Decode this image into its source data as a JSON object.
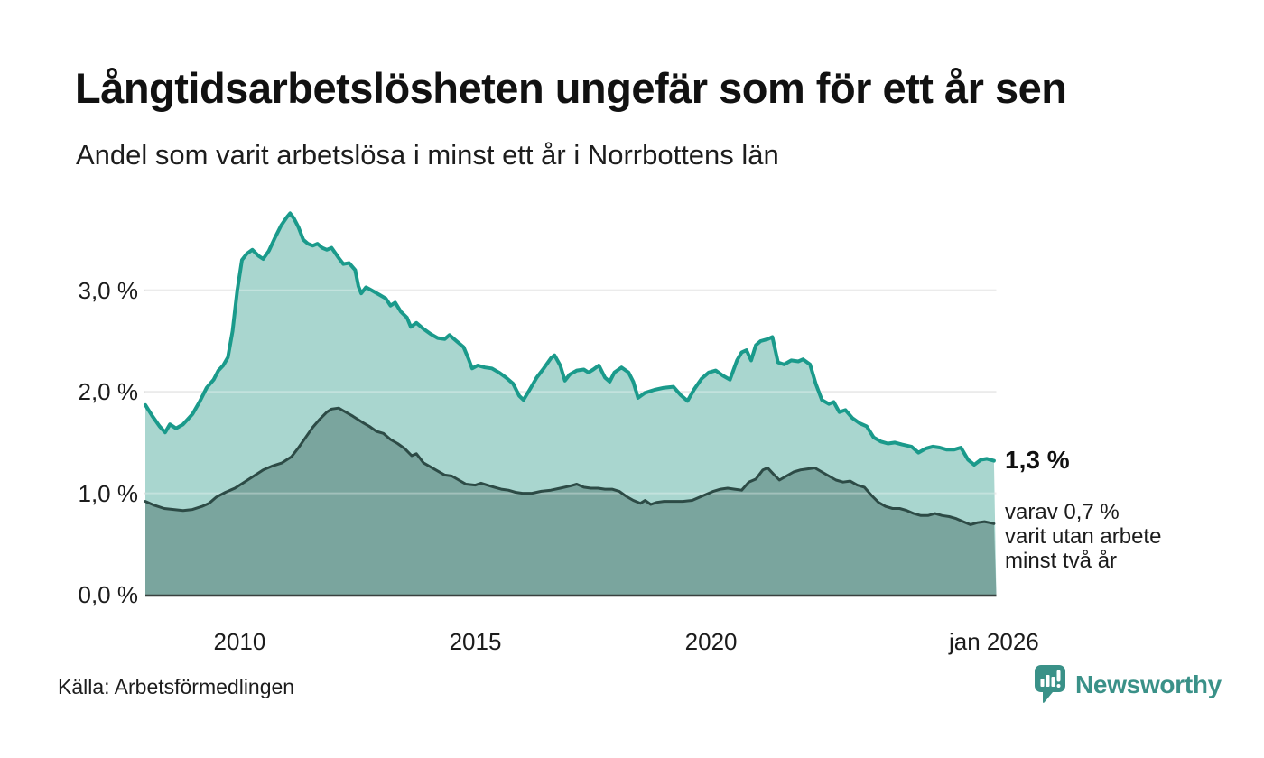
{
  "title": "Långtidsarbetslösheten ungefär som för ett år sen",
  "subtitle": "Andel som varit arbetslösa i minst ett år i Norrbottens län",
  "source": "Källa: Arbetsförmedlingen",
  "branding": {
    "name": "Newsworthy",
    "color": "#3a9188"
  },
  "annotations": {
    "latest_total": "1,3 %",
    "latest_sub": [
      "varav 0,7 %",
      "varit utan arbete",
      "minst två år"
    ]
  },
  "chart_data": {
    "type": "area",
    "title": "Långtidsarbetslösheten ungefär som för ett år sen",
    "subtitle": "Andel som varit arbetslösa i minst ett år i Norrbottens län",
    "unit": "percent",
    "grid": true,
    "colors": {
      "background": "#ffffff",
      "text": "#1c1c1c",
      "grid": "#e2e2e2",
      "baseline": "#39413f",
      "accent": "#3a9188"
    },
    "x_axis": {
      "range": [
        2008.0,
        2026.05
      ],
      "ticks": [
        {
          "label": "2010",
          "year": 2010
        },
        {
          "label": "2015",
          "year": 2015
        },
        {
          "label": "2020",
          "year": 2020
        },
        {
          "label": "jan 2026",
          "year": 2026
        }
      ]
    },
    "y_axis": {
      "range": [
        0,
        3.9
      ],
      "gridline_values": [
        1,
        2,
        3
      ],
      "ticks": [
        {
          "label": "0,0 %",
          "value": 0
        },
        {
          "label": "1,0 %",
          "value": 1
        },
        {
          "label": "2,0 %",
          "value": 2
        },
        {
          "label": "3,0 %",
          "value": 3
        }
      ]
    },
    "series": [
      {
        "name": "Arbetslösa minst ett år",
        "latest_label": "1,3 %",
        "line_color": "#1a9a8b",
        "fill_color": "#a9d6cf",
        "line_width": 4,
        "points": [
          [
            2008.0,
            1.87
          ],
          [
            2008.15,
            1.76
          ],
          [
            2008.3,
            1.66
          ],
          [
            2008.42,
            1.6
          ],
          [
            2008.52,
            1.68
          ],
          [
            2008.65,
            1.64
          ],
          [
            2008.8,
            1.68
          ],
          [
            2009.0,
            1.78
          ],
          [
            2009.15,
            1.9
          ],
          [
            2009.3,
            2.04
          ],
          [
            2009.45,
            2.12
          ],
          [
            2009.55,
            2.21
          ],
          [
            2009.65,
            2.26
          ],
          [
            2009.75,
            2.34
          ],
          [
            2009.85,
            2.6
          ],
          [
            2009.95,
            3.0
          ],
          [
            2010.05,
            3.3
          ],
          [
            2010.15,
            3.36
          ],
          [
            2010.27,
            3.4
          ],
          [
            2010.4,
            3.34
          ],
          [
            2010.5,
            3.31
          ],
          [
            2010.62,
            3.39
          ],
          [
            2010.75,
            3.52
          ],
          [
            2010.88,
            3.64
          ],
          [
            2011.0,
            3.72
          ],
          [
            2011.07,
            3.76
          ],
          [
            2011.15,
            3.71
          ],
          [
            2011.25,
            3.62
          ],
          [
            2011.35,
            3.5
          ],
          [
            2011.45,
            3.46
          ],
          [
            2011.55,
            3.44
          ],
          [
            2011.65,
            3.46
          ],
          [
            2011.75,
            3.42
          ],
          [
            2011.85,
            3.4
          ],
          [
            2011.95,
            3.42
          ],
          [
            2012.1,
            3.32
          ],
          [
            2012.2,
            3.26
          ],
          [
            2012.32,
            3.27
          ],
          [
            2012.45,
            3.2
          ],
          [
            2012.52,
            3.04
          ],
          [
            2012.58,
            2.97
          ],
          [
            2012.68,
            3.03
          ],
          [
            2012.8,
            3.0
          ],
          [
            2012.95,
            2.96
          ],
          [
            2013.1,
            2.92
          ],
          [
            2013.2,
            2.85
          ],
          [
            2013.3,
            2.88
          ],
          [
            2013.42,
            2.79
          ],
          [
            2013.55,
            2.73
          ],
          [
            2013.63,
            2.64
          ],
          [
            2013.75,
            2.68
          ],
          [
            2013.9,
            2.62
          ],
          [
            2014.05,
            2.57
          ],
          [
            2014.2,
            2.53
          ],
          [
            2014.35,
            2.52
          ],
          [
            2014.45,
            2.56
          ],
          [
            2014.6,
            2.5
          ],
          [
            2014.75,
            2.44
          ],
          [
            2014.85,
            2.33
          ],
          [
            2014.93,
            2.23
          ],
          [
            2015.05,
            2.26
          ],
          [
            2015.2,
            2.24
          ],
          [
            2015.35,
            2.23
          ],
          [
            2015.5,
            2.19
          ],
          [
            2015.65,
            2.14
          ],
          [
            2015.8,
            2.08
          ],
          [
            2015.93,
            1.96
          ],
          [
            2016.02,
            1.92
          ],
          [
            2016.15,
            2.02
          ],
          [
            2016.3,
            2.14
          ],
          [
            2016.45,
            2.23
          ],
          [
            2016.6,
            2.33
          ],
          [
            2016.68,
            2.36
          ],
          [
            2016.8,
            2.26
          ],
          [
            2016.9,
            2.11
          ],
          [
            2017.0,
            2.17
          ],
          [
            2017.15,
            2.21
          ],
          [
            2017.3,
            2.22
          ],
          [
            2017.4,
            2.19
          ],
          [
            2017.5,
            2.22
          ],
          [
            2017.62,
            2.26
          ],
          [
            2017.75,
            2.14
          ],
          [
            2017.85,
            2.1
          ],
          [
            2017.95,
            2.19
          ],
          [
            2018.1,
            2.24
          ],
          [
            2018.25,
            2.19
          ],
          [
            2018.35,
            2.1
          ],
          [
            2018.45,
            1.94
          ],
          [
            2018.6,
            1.99
          ],
          [
            2018.8,
            2.02
          ],
          [
            2019.0,
            2.04
          ],
          [
            2019.2,
            2.05
          ],
          [
            2019.35,
            1.97
          ],
          [
            2019.5,
            1.91
          ],
          [
            2019.65,
            2.03
          ],
          [
            2019.8,
            2.13
          ],
          [
            2019.95,
            2.19
          ],
          [
            2020.1,
            2.21
          ],
          [
            2020.25,
            2.16
          ],
          [
            2020.4,
            2.12
          ],
          [
            2020.55,
            2.31
          ],
          [
            2020.65,
            2.39
          ],
          [
            2020.75,
            2.41
          ],
          [
            2020.85,
            2.31
          ],
          [
            2020.95,
            2.46
          ],
          [
            2021.05,
            2.5
          ],
          [
            2021.2,
            2.52
          ],
          [
            2021.3,
            2.54
          ],
          [
            2021.42,
            2.29
          ],
          [
            2021.55,
            2.27
          ],
          [
            2021.7,
            2.31
          ],
          [
            2021.85,
            2.3
          ],
          [
            2021.95,
            2.32
          ],
          [
            2022.1,
            2.27
          ],
          [
            2022.22,
            2.08
          ],
          [
            2022.35,
            1.92
          ],
          [
            2022.5,
            1.88
          ],
          [
            2022.6,
            1.9
          ],
          [
            2022.72,
            1.8
          ],
          [
            2022.85,
            1.82
          ],
          [
            2023.0,
            1.74
          ],
          [
            2023.15,
            1.69
          ],
          [
            2023.3,
            1.66
          ],
          [
            2023.45,
            1.55
          ],
          [
            2023.6,
            1.51
          ],
          [
            2023.75,
            1.49
          ],
          [
            2023.9,
            1.5
          ],
          [
            2024.05,
            1.48
          ],
          [
            2024.25,
            1.46
          ],
          [
            2024.4,
            1.4
          ],
          [
            2024.55,
            1.44
          ],
          [
            2024.7,
            1.46
          ],
          [
            2024.85,
            1.45
          ],
          [
            2025.0,
            1.43
          ],
          [
            2025.15,
            1.43
          ],
          [
            2025.3,
            1.45
          ],
          [
            2025.45,
            1.33
          ],
          [
            2025.58,
            1.28
          ],
          [
            2025.72,
            1.33
          ],
          [
            2025.85,
            1.34
          ],
          [
            2026.0,
            1.32
          ]
        ]
      },
      {
        "name": "Varav arbetslösa minst två år",
        "latest_label": "0,7 %",
        "line_color": "#2d4b46",
        "fill_color": "#7aa59e",
        "line_width": 3,
        "points": [
          [
            2008.0,
            0.92
          ],
          [
            2008.2,
            0.88
          ],
          [
            2008.4,
            0.85
          ],
          [
            2008.6,
            0.84
          ],
          [
            2008.8,
            0.83
          ],
          [
            2009.0,
            0.84
          ],
          [
            2009.2,
            0.87
          ],
          [
            2009.35,
            0.9
          ],
          [
            2009.5,
            0.96
          ],
          [
            2009.7,
            1.01
          ],
          [
            2009.9,
            1.05
          ],
          [
            2010.1,
            1.11
          ],
          [
            2010.3,
            1.17
          ],
          [
            2010.5,
            1.23
          ],
          [
            2010.7,
            1.27
          ],
          [
            2010.9,
            1.3
          ],
          [
            2011.1,
            1.36
          ],
          [
            2011.25,
            1.45
          ],
          [
            2011.4,
            1.55
          ],
          [
            2011.55,
            1.65
          ],
          [
            2011.7,
            1.73
          ],
          [
            2011.85,
            1.8
          ],
          [
            2011.95,
            1.83
          ],
          [
            2012.1,
            1.84
          ],
          [
            2012.25,
            1.8
          ],
          [
            2012.4,
            1.76
          ],
          [
            2012.6,
            1.7
          ],
          [
            2012.75,
            1.66
          ],
          [
            2012.9,
            1.61
          ],
          [
            2013.05,
            1.59
          ],
          [
            2013.2,
            1.53
          ],
          [
            2013.35,
            1.49
          ],
          [
            2013.5,
            1.44
          ],
          [
            2013.65,
            1.37
          ],
          [
            2013.75,
            1.39
          ],
          [
            2013.9,
            1.3
          ],
          [
            2014.05,
            1.26
          ],
          [
            2014.2,
            1.22
          ],
          [
            2014.35,
            1.18
          ],
          [
            2014.5,
            1.17
          ],
          [
            2014.65,
            1.13
          ],
          [
            2014.8,
            1.09
          ],
          [
            2015.0,
            1.08
          ],
          [
            2015.12,
            1.1
          ],
          [
            2015.25,
            1.08
          ],
          [
            2015.4,
            1.06
          ],
          [
            2015.55,
            1.04
          ],
          [
            2015.7,
            1.03
          ],
          [
            2015.85,
            1.01
          ],
          [
            2016.0,
            1.0
          ],
          [
            2016.2,
            1.0
          ],
          [
            2016.4,
            1.02
          ],
          [
            2016.6,
            1.03
          ],
          [
            2016.8,
            1.05
          ],
          [
            2017.0,
            1.07
          ],
          [
            2017.15,
            1.09
          ],
          [
            2017.3,
            1.06
          ],
          [
            2017.45,
            1.05
          ],
          [
            2017.6,
            1.05
          ],
          [
            2017.75,
            1.04
          ],
          [
            2017.9,
            1.04
          ],
          [
            2018.05,
            1.02
          ],
          [
            2018.2,
            0.97
          ],
          [
            2018.35,
            0.93
          ],
          [
            2018.5,
            0.9
          ],
          [
            2018.6,
            0.93
          ],
          [
            2018.72,
            0.89
          ],
          [
            2018.85,
            0.91
          ],
          [
            2019.0,
            0.92
          ],
          [
            2019.2,
            0.92
          ],
          [
            2019.4,
            0.92
          ],
          [
            2019.6,
            0.93
          ],
          [
            2019.75,
            0.96
          ],
          [
            2019.9,
            0.99
          ],
          [
            2020.05,
            1.02
          ],
          [
            2020.2,
            1.04
          ],
          [
            2020.35,
            1.05
          ],
          [
            2020.5,
            1.04
          ],
          [
            2020.65,
            1.03
          ],
          [
            2020.8,
            1.11
          ],
          [
            2020.95,
            1.14
          ],
          [
            2021.1,
            1.23
          ],
          [
            2021.2,
            1.25
          ],
          [
            2021.32,
            1.19
          ],
          [
            2021.45,
            1.13
          ],
          [
            2021.6,
            1.17
          ],
          [
            2021.75,
            1.21
          ],
          [
            2021.9,
            1.23
          ],
          [
            2022.05,
            1.24
          ],
          [
            2022.2,
            1.25
          ],
          [
            2022.35,
            1.21
          ],
          [
            2022.5,
            1.17
          ],
          [
            2022.65,
            1.13
          ],
          [
            2022.8,
            1.11
          ],
          [
            2022.95,
            1.12
          ],
          [
            2023.1,
            1.08
          ],
          [
            2023.25,
            1.06
          ],
          [
            2023.4,
            0.98
          ],
          [
            2023.55,
            0.91
          ],
          [
            2023.7,
            0.87
          ],
          [
            2023.85,
            0.85
          ],
          [
            2024.0,
            0.85
          ],
          [
            2024.15,
            0.83
          ],
          [
            2024.3,
            0.8
          ],
          [
            2024.45,
            0.78
          ],
          [
            2024.6,
            0.78
          ],
          [
            2024.75,
            0.8
          ],
          [
            2024.9,
            0.78
          ],
          [
            2025.05,
            0.77
          ],
          [
            2025.2,
            0.75
          ],
          [
            2025.35,
            0.72
          ],
          [
            2025.5,
            0.69
          ],
          [
            2025.65,
            0.71
          ],
          [
            2025.8,
            0.72
          ],
          [
            2025.9,
            0.71
          ],
          [
            2026.0,
            0.7
          ]
        ]
      }
    ]
  }
}
